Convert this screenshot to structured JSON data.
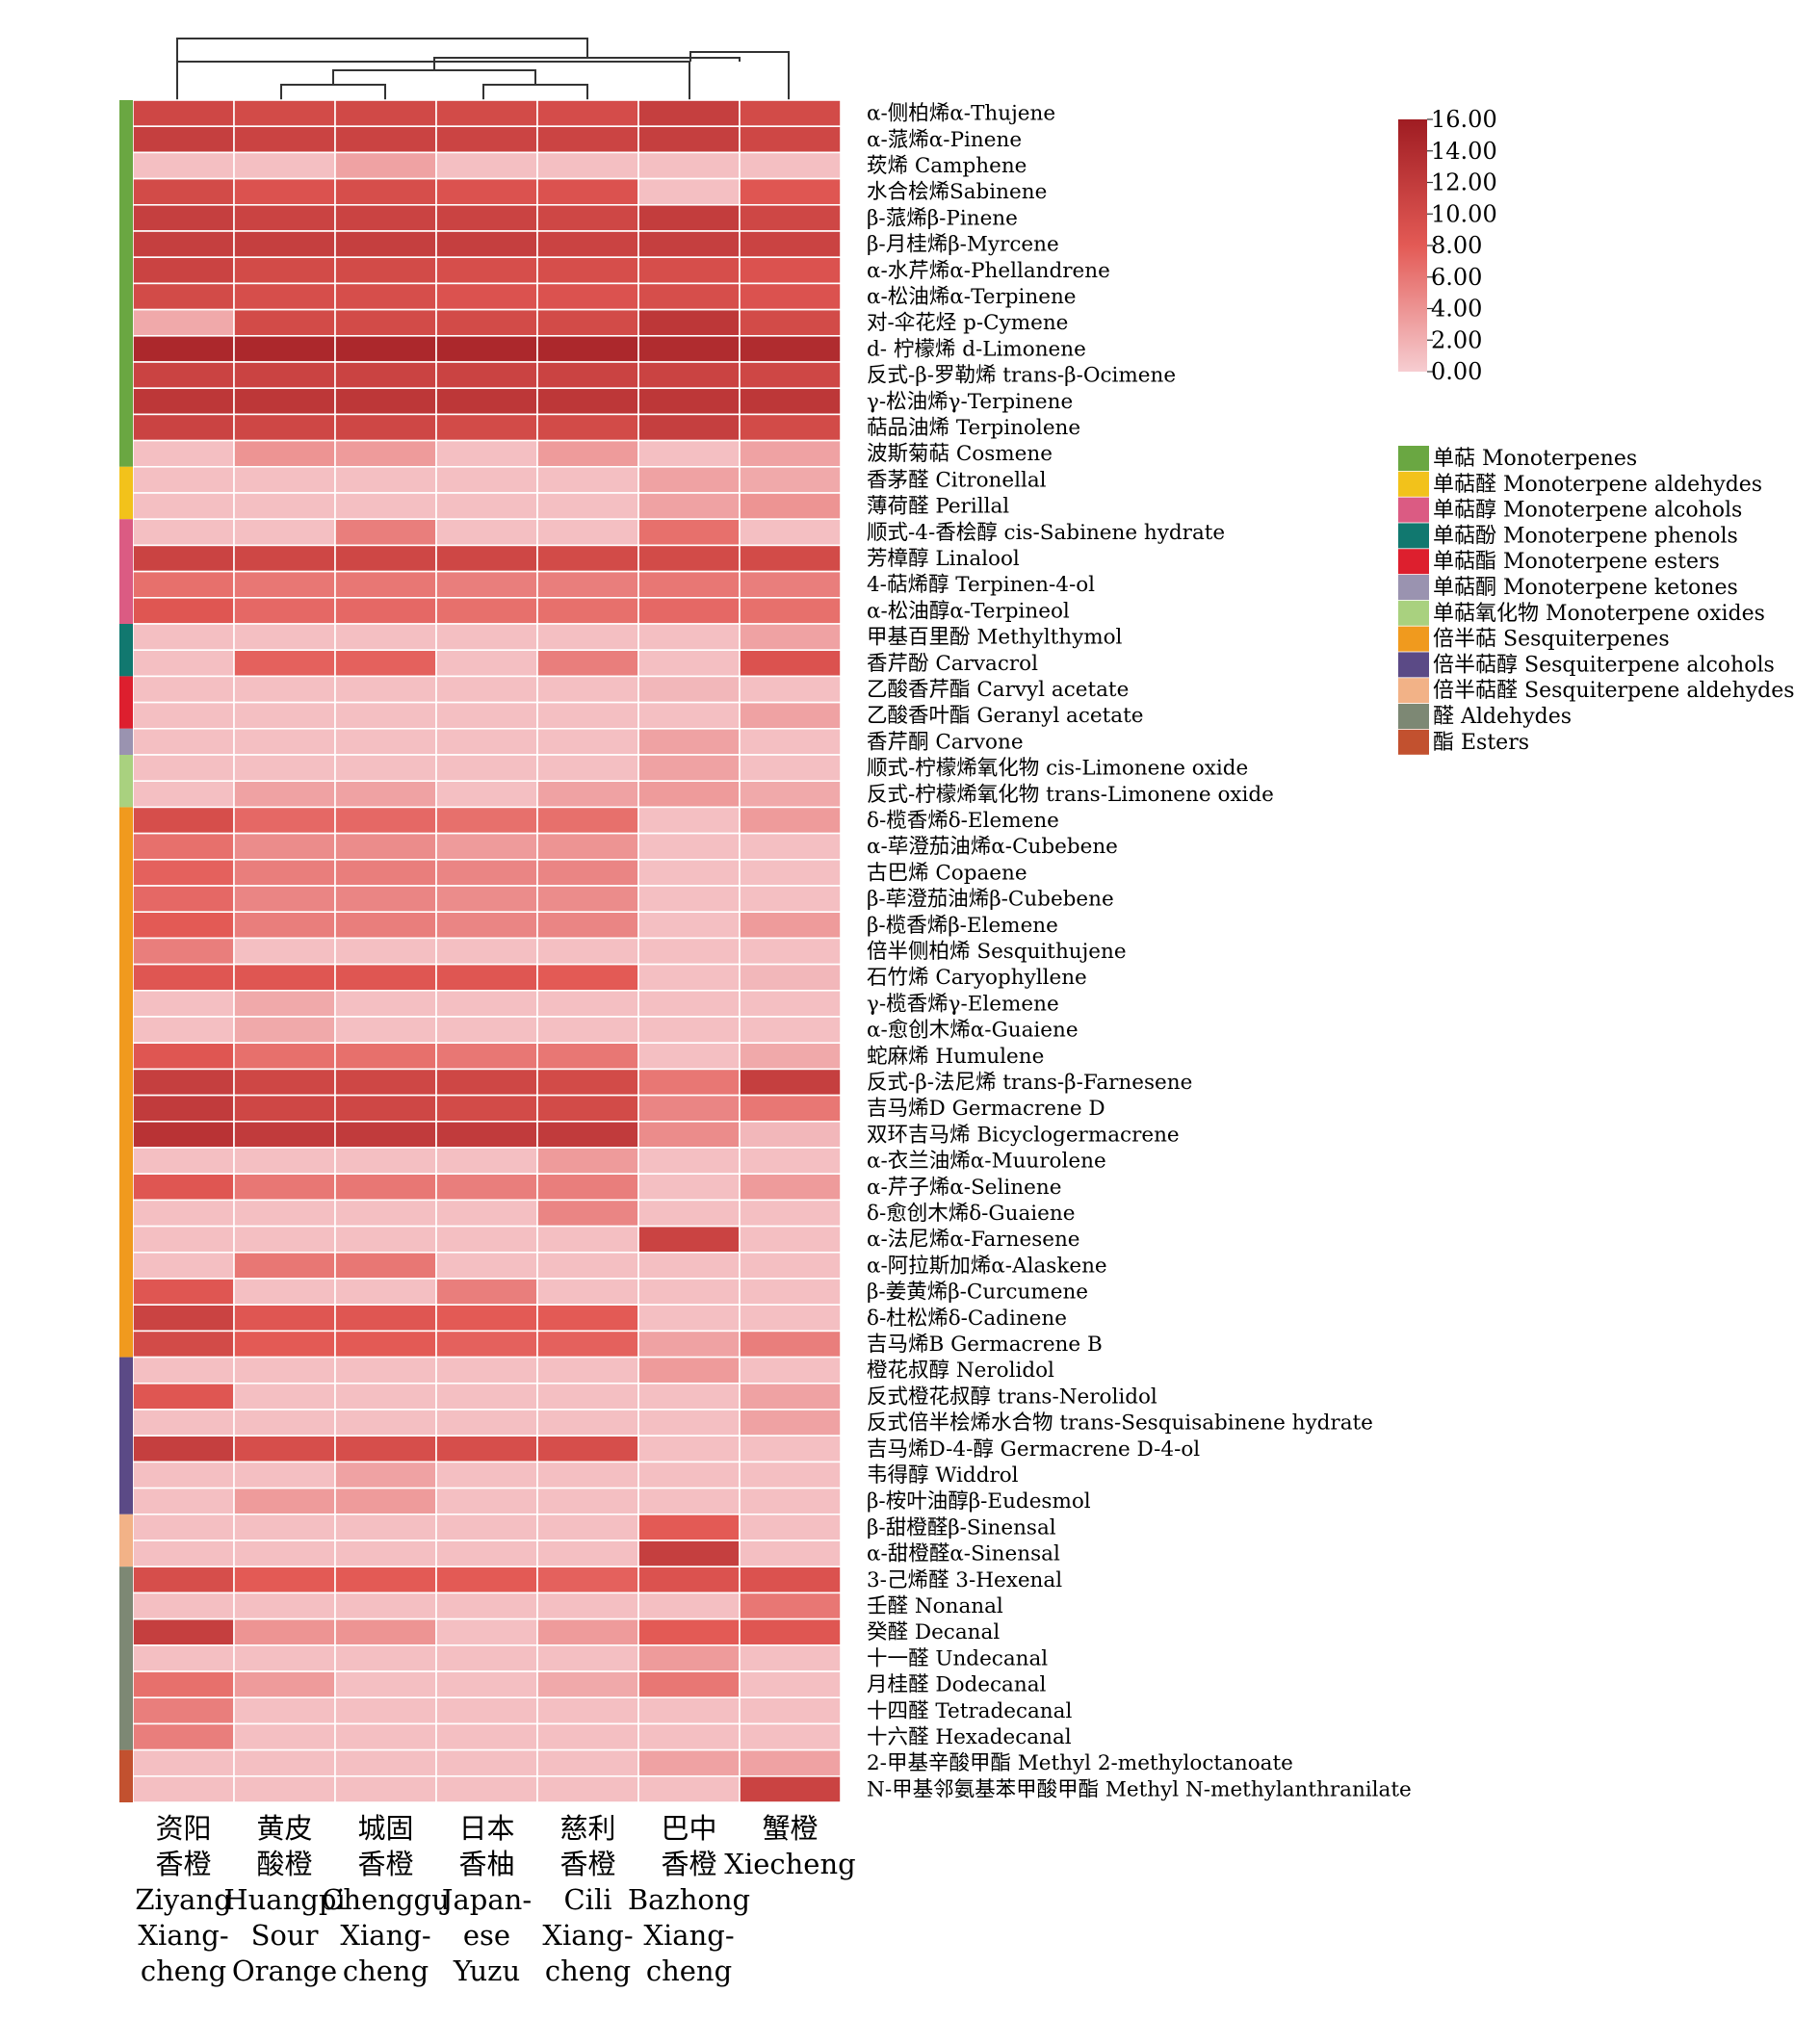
{
  "chart_data": {
    "type": "heatmap",
    "title": "",
    "value_range": [
      0,
      16
    ],
    "colorbar": {
      "ticks": [
        "16.00",
        "14.00",
        "12.00",
        "10.00",
        "8.00",
        "6.00",
        "4.00",
        "2.00",
        "0.00"
      ],
      "colors": [
        "#f6cdd1",
        "#e35a55",
        "#9f1c22"
      ]
    },
    "columns": [
      {
        "zh1": "资阳",
        "zh2": "香橙",
        "en": [
          "Ziyang",
          "Xiang-",
          "cheng"
        ]
      },
      {
        "zh1": "黄皮",
        "zh2": "酸橙",
        "en": [
          "Huangpi",
          "Sour",
          "Orange"
        ]
      },
      {
        "zh1": "城固",
        "zh2": "香橙",
        "en": [
          "Chenggu",
          "Xiang-",
          "cheng"
        ]
      },
      {
        "zh1": "日本",
        "zh2": "香柚",
        "en": [
          "Japan-",
          "ese",
          "Yuzu"
        ]
      },
      {
        "zh1": "慈利",
        "zh2": "香橙",
        "en": [
          "Cili",
          "Xiang-",
          "cheng"
        ]
      },
      {
        "zh1": "巴中",
        "zh2": "香橙",
        "en": [
          "Bazhong",
          "Xiang-",
          "cheng"
        ]
      },
      {
        "zh1": "蟹橙",
        "zh2": "",
        "en": [
          "Xiecheng"
        ]
      }
    ],
    "groups": [
      {
        "label": "单萜 Monoterpenes",
        "color": "#6aa742",
        "count": 14
      },
      {
        "label": "单萜醛 Monoterpene aldehydes",
        "color": "#f2c21b",
        "count": 2
      },
      {
        "label": "单萜醇 Monoterpene alcohols",
        "color": "#db5b83",
        "count": 4
      },
      {
        "label": "单萜酚 Monoterpene phenols",
        "color": "#11786f",
        "count": 2
      },
      {
        "label": "单萜酯 Monoterpene esters",
        "color": "#dd1f2e",
        "count": 2
      },
      {
        "label": "单萜酮 Monoterpene ketones",
        "color": "#9a93b0",
        "count": 1
      },
      {
        "label": "单萜氧化物 Monoterpene oxides",
        "color": "#a9d17f",
        "count": 2
      },
      {
        "label": "倍半萜 Sesquiterpenes",
        "color": "#f09a1e",
        "count": 21
      },
      {
        "label": "倍半萜醇 Sesquiterpene alcohols",
        "color": "#5b4a86",
        "count": 6
      },
      {
        "label": "倍半萜醛 Sesquiterpene aldehydes",
        "color": "#f2b287",
        "count": 2
      },
      {
        "label": "醛 Aldehydes",
        "color": "#7d8874",
        "count": 7
      },
      {
        "label": "酯 Esters",
        "color": "#c2512f",
        "count": 2
      }
    ],
    "rows": [
      {
        "label": "α-侧柏烯α-Thujene",
        "values": [
          10.5,
          10.0,
          10.2,
          10.0,
          9.8,
          11.5,
          10.0
        ]
      },
      {
        "label": "α-蒎烯α-Pinene",
        "values": [
          11.5,
          11.0,
          11.0,
          10.8,
          10.8,
          11.5,
          10.5
        ]
      },
      {
        "label": "莰烯 Camphene",
        "values": [
          1.0,
          1.0,
          3.0,
          1.0,
          1.0,
          1.0,
          1.0
        ]
      },
      {
        "label": "水合桧烯Sabinene",
        "values": [
          10.0,
          9.0,
          9.5,
          9.0,
          9.0,
          1.0,
          8.5
        ]
      },
      {
        "label": "β-蒎烯β-Pinene",
        "values": [
          11.5,
          11.0,
          11.0,
          11.0,
          10.5,
          11.8,
          10.5
        ]
      },
      {
        "label": "β-月桂烯β-Myrcene",
        "values": [
          11.5,
          11.5,
          11.5,
          11.5,
          11.0,
          11.5,
          11.0
        ]
      },
      {
        "label": "α-水芹烯α-Phellandrene",
        "values": [
          11.0,
          10.0,
          10.0,
          9.5,
          9.5,
          9.5,
          9.0
        ]
      },
      {
        "label": "α-松油烯α-Terpinene",
        "values": [
          10.0,
          9.5,
          9.5,
          9.0,
          9.0,
          9.5,
          9.0
        ]
      },
      {
        "label": "对-伞花烃 p-Cymene",
        "values": [
          2.5,
          10.0,
          10.0,
          10.0,
          10.0,
          12.5,
          10.0
        ]
      },
      {
        "label": "d- 柠檬烯 d-Limonene",
        "values": [
          14.5,
          14.5,
          14.5,
          14.5,
          14.5,
          14.0,
          14.0
        ]
      },
      {
        "label": "反式-β-罗勒烯 trans-β-Ocimene",
        "values": [
          11.0,
          11.0,
          11.0,
          11.0,
          11.0,
          11.0,
          10.5
        ]
      },
      {
        "label": "γ-松油烯γ-Terpinene",
        "values": [
          12.5,
          12.5,
          12.5,
          12.5,
          12.5,
          12.5,
          12.5
        ]
      },
      {
        "label": "萜品油烯 Terpinolene",
        "values": [
          11.0,
          10.5,
          10.5,
          10.0,
          10.0,
          11.5,
          10.0
        ]
      },
      {
        "label": "波斯菊萜 Cosmene",
        "values": [
          1.0,
          4.0,
          3.5,
          1.0,
          3.5,
          1.0,
          3.0
        ]
      },
      {
        "label": "香茅醛 Citronellal",
        "values": [
          1.0,
          1.0,
          1.0,
          1.0,
          1.0,
          3.0,
          2.5
        ]
      },
      {
        "label": "薄荷醛 Perillal",
        "values": [
          1.0,
          1.0,
          1.0,
          1.0,
          1.0,
          3.0,
          4.0
        ]
      },
      {
        "label": "顺式-4-香桧醇 cis-Sabinene hydrate",
        "values": [
          1.0,
          1.0,
          5.5,
          1.0,
          1.0,
          6.5,
          1.0
        ]
      },
      {
        "label": "芳樟醇 Linalool",
        "values": [
          11.0,
          10.5,
          10.5,
          10.5,
          10.0,
          10.0,
          10.0
        ]
      },
      {
        "label": "4-萜烯醇 Terpinen-4-ol",
        "values": [
          6.5,
          6.0,
          6.0,
          5.5,
          5.5,
          6.0,
          5.5
        ]
      },
      {
        "label": "α-松油醇α-Terpineol",
        "values": [
          8.5,
          7.0,
          7.0,
          6.5,
          6.5,
          7.0,
          6.5
        ]
      },
      {
        "label": "甲基百里酚 Methylthymol",
        "values": [
          1.0,
          1.0,
          1.0,
          1.0,
          1.0,
          1.0,
          3.0
        ]
      },
      {
        "label": "香芹酚 Carvacrol",
        "values": [
          1.0,
          7.5,
          7.5,
          1.0,
          5.5,
          1.0,
          9.0
        ]
      },
      {
        "label": "乙酸香芹酯 Carvyl acetate",
        "values": [
          1.0,
          1.0,
          1.0,
          1.0,
          1.0,
          1.5,
          1.0
        ]
      },
      {
        "label": "乙酸香叶酯 Geranyl acetate",
        "values": [
          1.0,
          1.0,
          1.0,
          1.0,
          1.0,
          1.0,
          3.0
        ]
      },
      {
        "label": "香芹酮 Carvone",
        "values": [
          1.0,
          1.0,
          1.0,
          1.0,
          1.0,
          3.0,
          1.0
        ]
      },
      {
        "label": "顺式-柠檬烯氧化物 cis-Limonene oxide",
        "values": [
          1.0,
          1.0,
          1.0,
          1.0,
          1.0,
          3.0,
          1.0
        ]
      },
      {
        "label": "反式-柠檬烯氧化物 trans-Limonene oxide",
        "values": [
          1.0,
          3.0,
          3.0,
          1.0,
          3.0,
          3.5,
          2.5
        ]
      },
      {
        "label": "δ-榄香烯δ-Elemene",
        "values": [
          9.5,
          7.0,
          7.0,
          6.5,
          6.5,
          1.0,
          3.5
        ]
      },
      {
        "label": "α-荜澄茄油烯α-Cubebene",
        "values": [
          6.5,
          4.5,
          4.5,
          3.5,
          4.0,
          1.0,
          1.0
        ]
      },
      {
        "label": "古巴烯 Copaene",
        "values": [
          7.5,
          5.5,
          5.5,
          5.0,
          5.0,
          1.0,
          1.0
        ]
      },
      {
        "label": "β-荜澄茄油烯β-Cubebene",
        "values": [
          7.0,
          5.0,
          5.0,
          4.5,
          4.5,
          1.0,
          1.0
        ]
      },
      {
        "label": "β-榄香烯β-Elemene",
        "values": [
          8.0,
          5.5,
          5.5,
          5.0,
          5.0,
          1.0,
          3.5
        ]
      },
      {
        "label": "倍半侧柏烯 Sesquithujene",
        "values": [
          5.5,
          1.0,
          1.0,
          1.0,
          1.0,
          1.0,
          1.0
        ]
      },
      {
        "label": "石竹烯 Caryophyllene",
        "values": [
          8.5,
          8.5,
          8.5,
          8.5,
          8.0,
          1.0,
          1.5
        ]
      },
      {
        "label": "γ-榄香烯γ-Elemene",
        "values": [
          1.0,
          2.5,
          1.0,
          1.0,
          1.0,
          1.0,
          1.0
        ]
      },
      {
        "label": "α-愈创木烯α-Guaiene",
        "values": [
          1.0,
          2.5,
          1.0,
          1.0,
          1.0,
          1.0,
          1.0
        ]
      },
      {
        "label": "蛇麻烯 Humulene",
        "values": [
          8.5,
          6.5,
          6.5,
          6.0,
          6.0,
          1.0,
          2.5
        ]
      },
      {
        "label": "反式-β-法尼烯 trans-β-Farnesene",
        "values": [
          11.5,
          10.5,
          10.5,
          10.5,
          10.0,
          6.0,
          11.5
        ]
      },
      {
        "label": "吉马烯D Germacrene D",
        "values": [
          12.0,
          10.5,
          10.5,
          10.0,
          10.0,
          5.0,
          6.0
        ]
      },
      {
        "label": "双环吉马烯 Bicyclogermacrene",
        "values": [
          13.0,
          12.0,
          12.0,
          12.0,
          12.0,
          4.5,
          1.5
        ]
      },
      {
        "label": "α-衣兰油烯α-Muurolene",
        "values": [
          1.0,
          1.0,
          1.0,
          1.0,
          3.5,
          1.0,
          1.0
        ]
      },
      {
        "label": "α-芹子烯α-Selinene",
        "values": [
          8.5,
          6.0,
          6.0,
          5.5,
          5.5,
          1.0,
          3.5
        ]
      },
      {
        "label": "δ-愈创木烯δ-Guaiene",
        "values": [
          1.0,
          1.0,
          1.0,
          1.0,
          5.0,
          1.0,
          1.0
        ]
      },
      {
        "label": "α-法尼烯α-Farnesene",
        "values": [
          1.0,
          1.0,
          1.0,
          1.0,
          1.0,
          11.0,
          1.0
        ]
      },
      {
        "label": "α-阿拉斯加烯α-Alaskene",
        "values": [
          1.0,
          6.0,
          6.0,
          1.0,
          1.0,
          1.0,
          1.0
        ]
      },
      {
        "label": "β-姜黄烯β-Curcumene",
        "values": [
          8.5,
          1.0,
          1.0,
          5.5,
          1.0,
          1.0,
          1.0
        ]
      },
      {
        "label": "δ-杜松烯δ-Cadinene",
        "values": [
          11.0,
          8.5,
          8.5,
          8.0,
          8.0,
          1.0,
          1.0
        ]
      },
      {
        "label": "吉马烯B Germacrene B",
        "values": [
          10.0,
          8.0,
          8.0,
          7.5,
          7.5,
          3.0,
          5.5
        ]
      },
      {
        "label": "橙花叔醇 Nerolidol",
        "values": [
          1.0,
          1.0,
          1.0,
          1.0,
          1.0,
          3.5,
          1.0
        ]
      },
      {
        "label": "反式橙花叔醇 trans-Nerolidol",
        "values": [
          8.5,
          1.0,
          1.0,
          1.0,
          1.0,
          1.0,
          3.0
        ]
      },
      {
        "label": "反式倍半桧烯水合物 trans-Sesquisabinene hydrate",
        "values": [
          1.0,
          1.0,
          1.0,
          1.0,
          1.0,
          1.0,
          3.0
        ]
      },
      {
        "label": "吉马烯D-4-醇 Germacrene D-4-ol",
        "values": [
          11.5,
          9.5,
          9.5,
          9.5,
          9.5,
          1.0,
          1.0
        ]
      },
      {
        "label": "韦得醇 Widdrol",
        "values": [
          1.0,
          1.0,
          3.0,
          1.0,
          1.0,
          1.0,
          1.0
        ]
      },
      {
        "label": "β-桉叶油醇β-Eudesmol",
        "values": [
          1.0,
          3.5,
          3.5,
          1.0,
          1.0,
          1.0,
          1.0
        ]
      },
      {
        "label": "β-甜橙醛β-Sinensal",
        "values": [
          1.0,
          1.0,
          1.0,
          1.0,
          1.0,
          8.0,
          1.0
        ]
      },
      {
        "label": "α-甜橙醛α-Sinensal",
        "values": [
          1.0,
          1.0,
          1.0,
          1.0,
          1.0,
          11.5,
          1.0
        ]
      },
      {
        "label": "3-己烯醛 3-Hexenal",
        "values": [
          9.5,
          8.0,
          8.0,
          8.0,
          7.5,
          9.0,
          9.0
        ]
      },
      {
        "label": "壬醛 Nonanal",
        "values": [
          1.0,
          1.0,
          1.0,
          1.0,
          1.0,
          1.0,
          6.0
        ]
      },
      {
        "label": "癸醛 Decanal",
        "values": [
          11.5,
          4.0,
          4.0,
          1.0,
          3.5,
          8.0,
          8.5
        ]
      },
      {
        "label": "十一醛 Undecanal",
        "values": [
          1.0,
          1.0,
          1.0,
          1.0,
          1.0,
          3.5,
          1.0
        ]
      },
      {
        "label": "月桂醛 Dodecanal",
        "values": [
          6.5,
          3.5,
          1.0,
          1.0,
          2.5,
          6.0,
          1.0
        ]
      },
      {
        "label": "十四醛 Tetradecanal",
        "values": [
          5.5,
          1.0,
          1.0,
          1.0,
          1.0,
          1.0,
          1.0
        ]
      },
      {
        "label": "十六醛 Hexadecanal",
        "values": [
          5.5,
          1.0,
          1.0,
          1.0,
          1.0,
          1.0,
          1.0
        ]
      },
      {
        "label": "2-甲基辛酸甲酯 Methyl 2-methyloctanoate",
        "values": [
          1.0,
          1.0,
          1.0,
          1.0,
          1.0,
          3.0,
          3.0
        ]
      },
      {
        "label": "N-甲基邻氨基苯甲酸甲酯 Methyl N-methylanthranilate",
        "values": [
          1.0,
          1.0,
          1.0,
          1.0,
          1.0,
          1.0,
          11.0
        ]
      }
    ]
  }
}
